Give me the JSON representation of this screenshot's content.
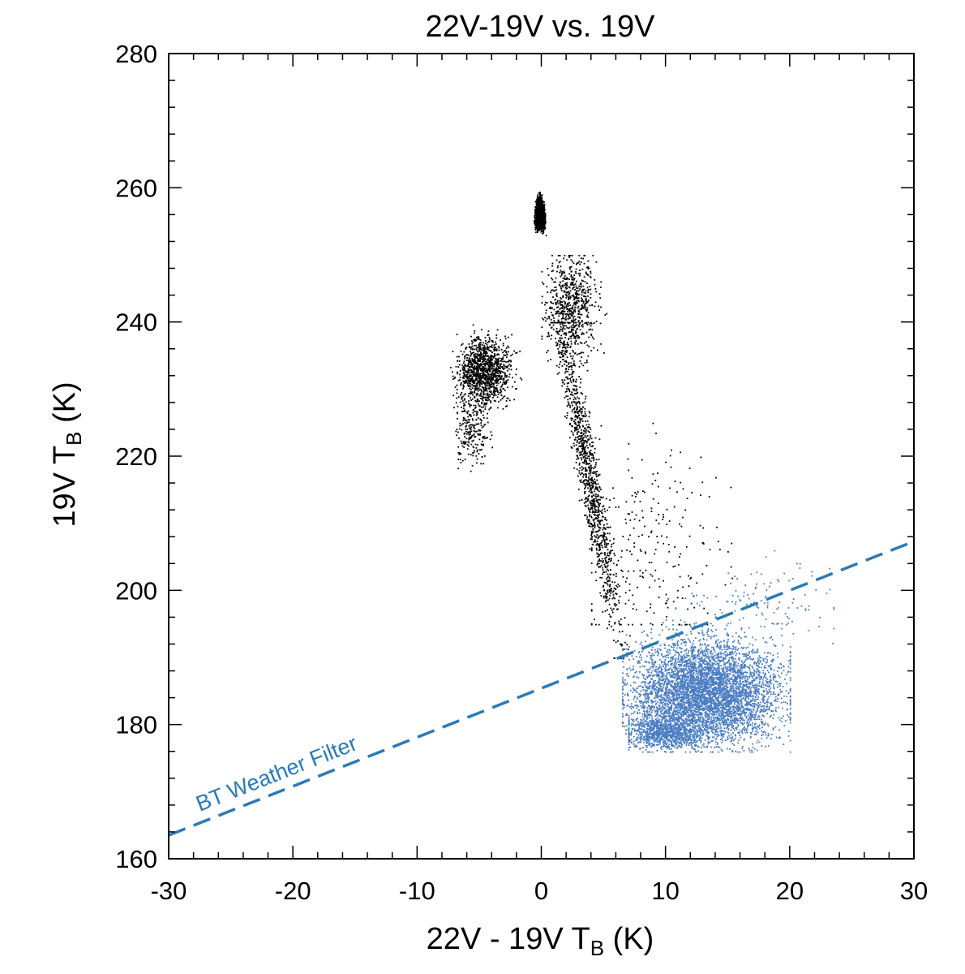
{
  "chart_data": {
    "type": "scatter",
    "title": "22V-19V vs. 19V",
    "xlabel": {
      "main": "22V - 19V T",
      "sub": "B",
      "unit": " (K)"
    },
    "ylabel": {
      "main": "19V T",
      "sub": "B",
      "unit": " (K)"
    },
    "xlim": [
      -30,
      30
    ],
    "ylim": [
      160,
      280
    ],
    "x_ticks": [
      -30,
      -20,
      -10,
      0,
      10,
      20,
      30
    ],
    "y_ticks": [
      160,
      180,
      200,
      220,
      240,
      260,
      280
    ],
    "x_ticks_labels": [
      "-30",
      "-20",
      "-10",
      "0",
      "10",
      "20",
      "30"
    ],
    "y_ticks_labels": [
      "160",
      "180",
      "200",
      "220",
      "240",
      "260",
      "280"
    ],
    "x_minor_step": 2,
    "y_minor_step": 4,
    "grid": false,
    "filter_line": {
      "label": "BT Weather Filter",
      "color": "#2a7ab8",
      "style": "dashed",
      "points": [
        [
          -30,
          163.5
        ],
        [
          30,
          207.3
        ]
      ]
    },
    "series": [
      {
        "color": "#000000",
        "clusters": [
          {
            "desc": "upper peak",
            "x": [
              -1.2,
              0.8
            ],
            "y": [
              244,
              261
            ]
          },
          {
            "desc": "left arm",
            "x": [
              -7.5,
              -1
            ],
            "y": [
              222,
              246
            ]
          },
          {
            "desc": "left tail",
            "x": [
              -7.5,
              -4
            ],
            "y": [
              217,
              232
            ]
          },
          {
            "desc": "right shoulder",
            "x": [
              0,
              6
            ],
            "y": [
              225,
              250
            ]
          },
          {
            "desc": "descending band",
            "x": [
              1,
              9
            ],
            "y": [
              190,
              240
            ]
          },
          {
            "desc": "right diffuse",
            "x": [
              4,
              16
            ],
            "y": [
              195,
              225
            ]
          }
        ]
      },
      {
        "color": "#4a7dc4",
        "clusters": [
          {
            "desc": "lower blob",
            "x": [
              6.5,
              20
            ],
            "y": [
              176,
              196
            ]
          },
          {
            "desc": "lower edge",
            "x": [
              7,
              14
            ],
            "y": [
              176,
              182
            ]
          },
          {
            "desc": "scatter above",
            "x": [
              10,
              23.5
            ],
            "y": [
              190,
              206
            ]
          }
        ]
      }
    ]
  }
}
